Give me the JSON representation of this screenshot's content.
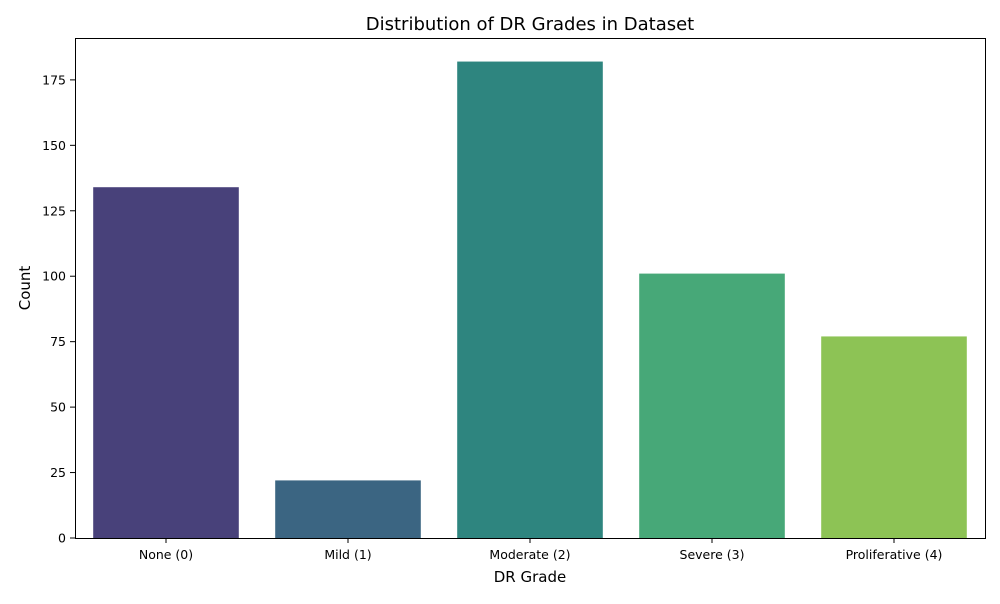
{
  "chart_data": {
    "type": "bar",
    "title": "Distribution of DR Grades in Dataset",
    "xlabel": "DR Grade",
    "ylabel": "Count",
    "categories": [
      "None (0)",
      "Mild (1)",
      "Moderate (2)",
      "Severe (3)",
      "Proliferative (4)"
    ],
    "values": [
      134,
      22,
      182,
      101,
      77
    ],
    "colors": [
      "#48417a",
      "#3b6582",
      "#2e857f",
      "#47a878",
      "#8dc355"
    ],
    "ylim": [
      0,
      191
    ],
    "yticks": [
      0,
      25,
      50,
      75,
      100,
      125,
      150,
      175
    ],
    "grid": false,
    "legend": "none"
  }
}
